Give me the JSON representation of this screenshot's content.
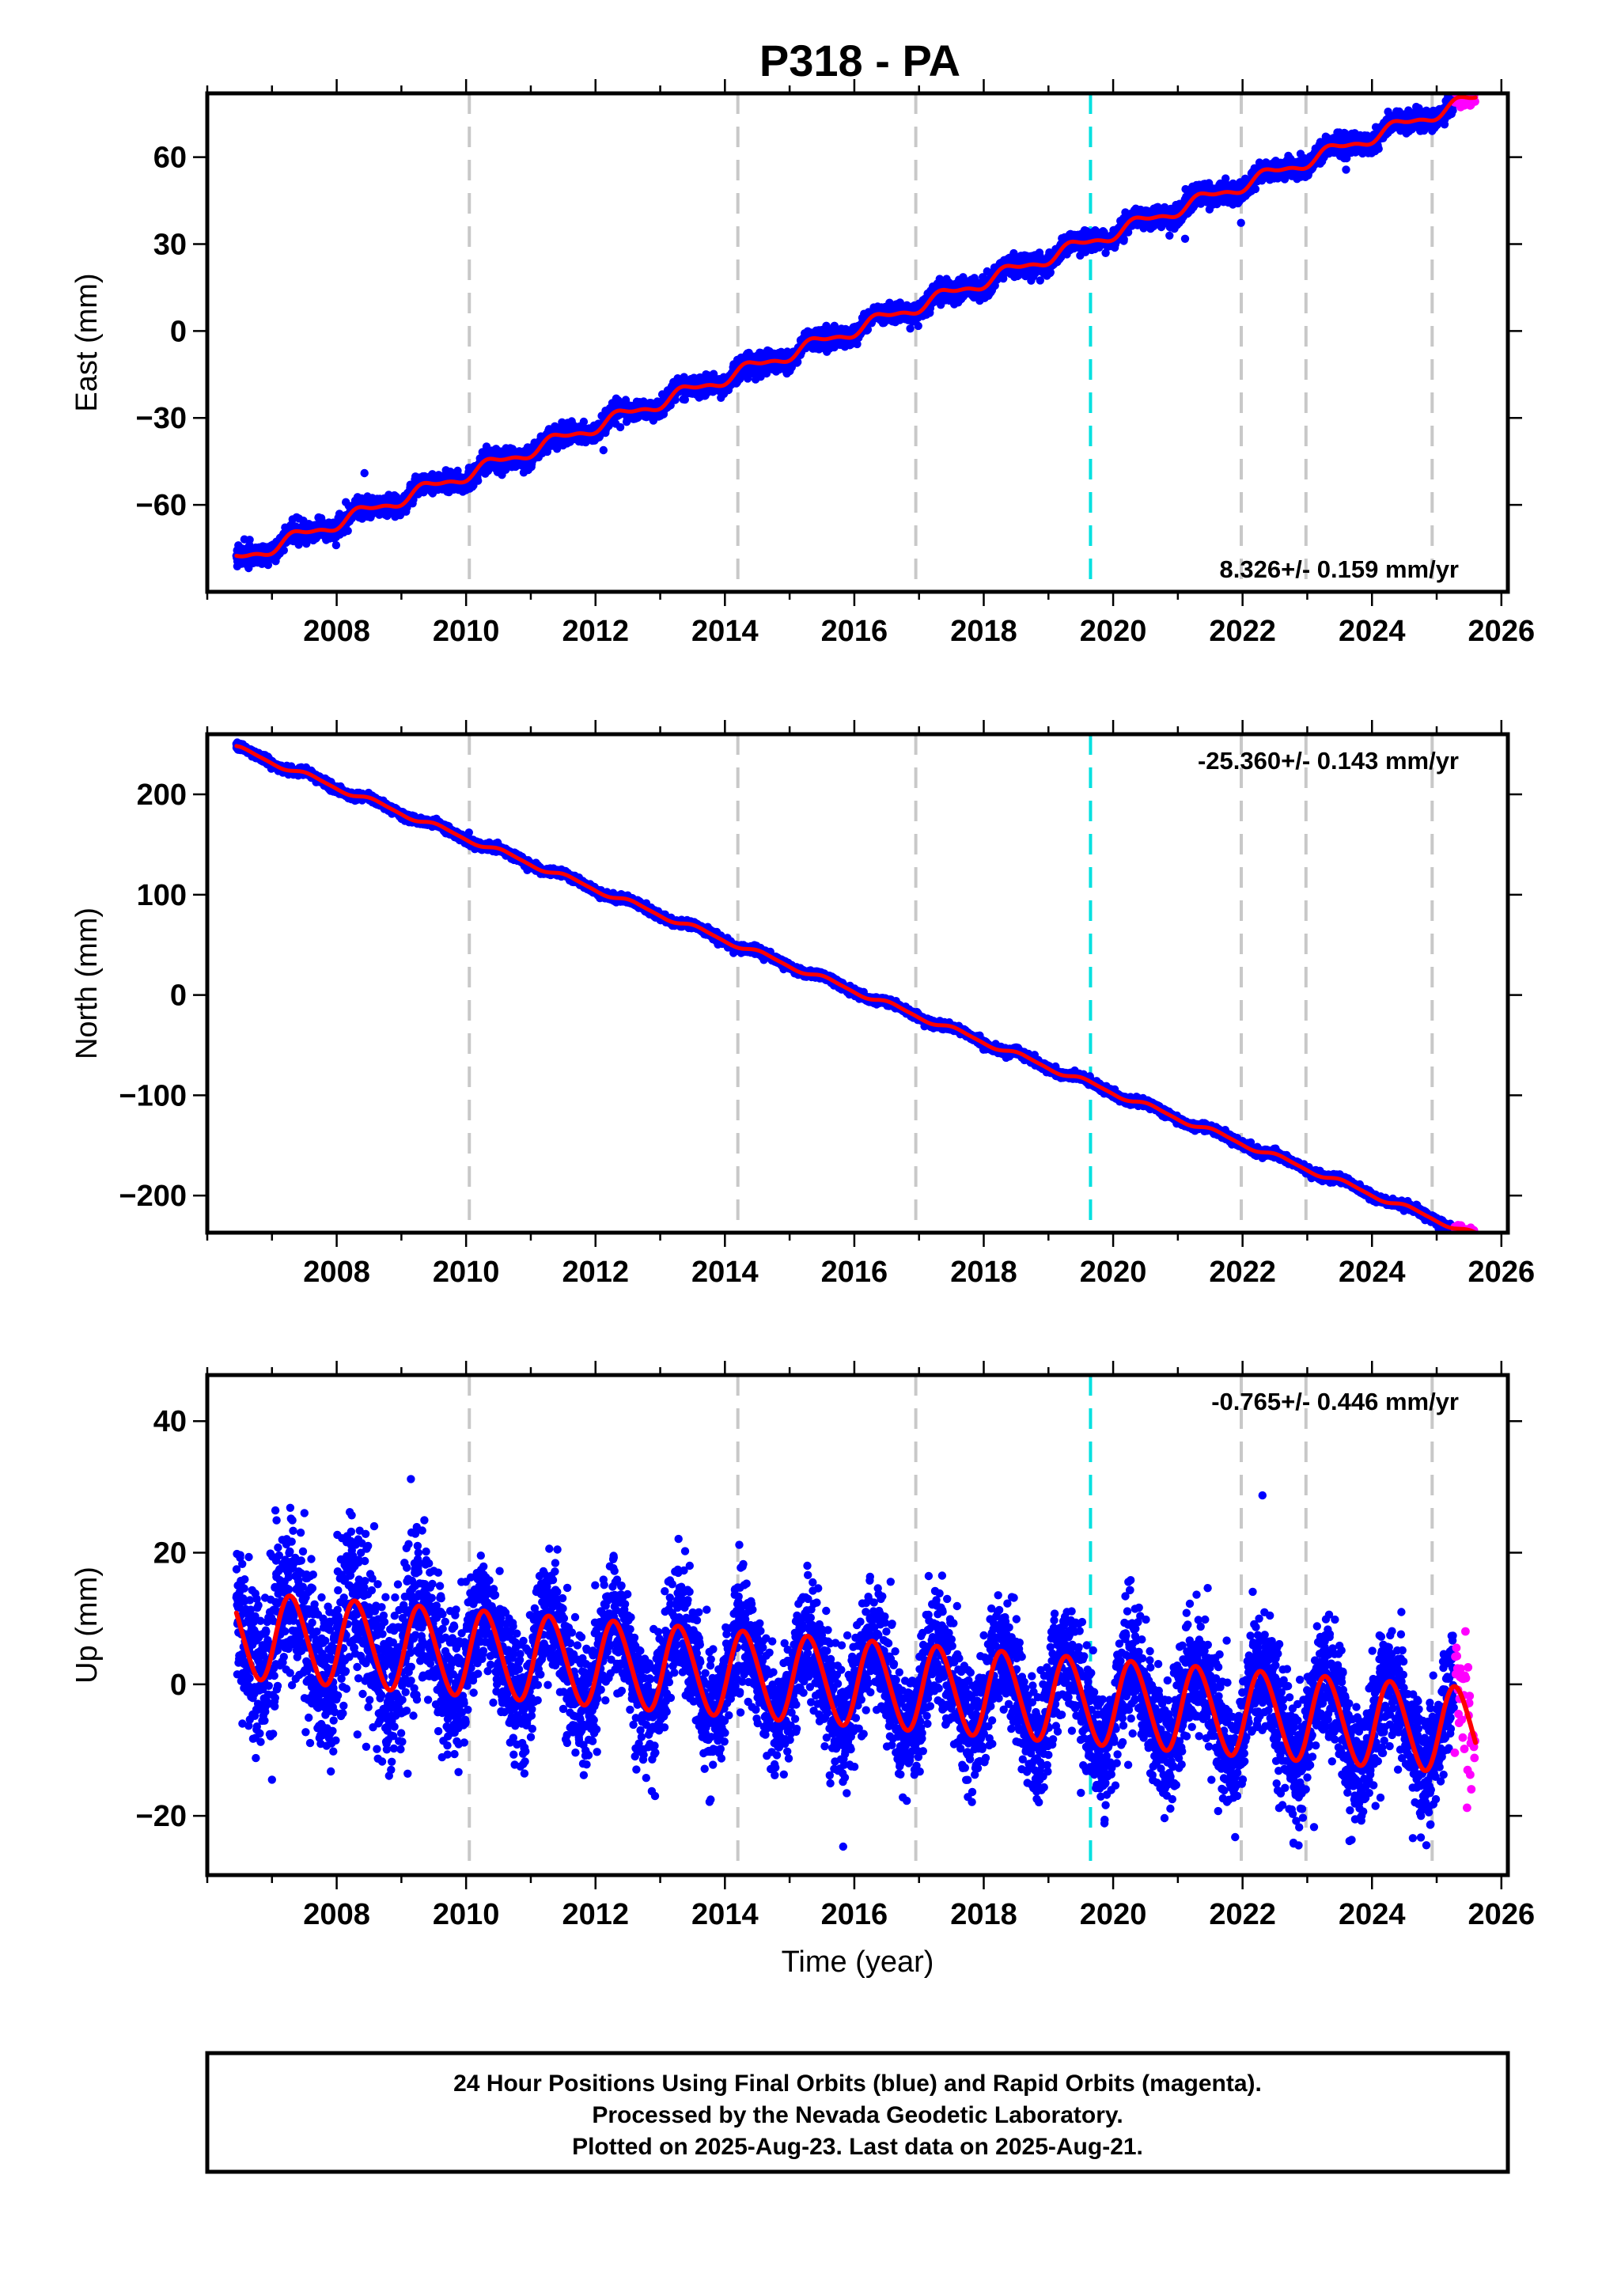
{
  "title": "P318 - PA",
  "colors": {
    "final_orbits": "#0000ff",
    "rapid_orbits": "#ff00ff",
    "fit_line": "#ff0000",
    "event_line": "#c8c8c8",
    "antenna_line": "#00e0e0"
  },
  "event_lines_years": [
    2010.05,
    2014.2,
    2016.95,
    2021.98,
    2022.98,
    2024.93
  ],
  "antenna_line_year": 2019.65,
  "chart_data": [
    {
      "type": "scatter",
      "component": "east",
      "ylabel": "East (mm)",
      "xlabel": "",
      "xlim": [
        2006.0,
        2026.1
      ],
      "ylim": [
        -90,
        82
      ],
      "xticks": [
        2008,
        2010,
        2012,
        2014,
        2016,
        2018,
        2020,
        2022,
        2024,
        2026
      ],
      "yticks": [
        -60,
        -30,
        0,
        30,
        60
      ],
      "rate_label": "8.326+/- 0.159 mm/yr",
      "rate_position": "bottom-right",
      "model": {
        "t_start": 2006.45,
        "t_end": 2025.6,
        "t_ref": 2016.0,
        "offset": 0.5,
        "rate": 8.326,
        "annual_amp": 2.0,
        "annual_phase": 0.15,
        "semiannual_amp": 0.8,
        "noise": 1.6
      },
      "series": [
        {
          "name": "Final Orbits",
          "t_range": [
            2006.45,
            2025.28
          ]
        },
        {
          "name": "Rapid Orbits",
          "t_range": [
            2025.28,
            2025.6
          ]
        }
      ]
    },
    {
      "type": "scatter",
      "component": "north",
      "ylabel": "North (mm)",
      "xlabel": "",
      "xlim": [
        2006.0,
        2026.1
      ],
      "ylim": [
        -237,
        260
      ],
      "xticks": [
        2008,
        2010,
        2012,
        2014,
        2016,
        2018,
        2020,
        2022,
        2024,
        2026
      ],
      "yticks": [
        -200,
        -100,
        0,
        100,
        200
      ],
      "rate_label": "-25.360+/- 0.143 mm/yr",
      "rate_position": "top-right",
      "model": {
        "t_start": 2006.45,
        "t_end": 2025.6,
        "t_ref": 2016.0,
        "offset": 4.0,
        "rate": -25.36,
        "annual_amp": 2.5,
        "annual_phase": 0.35,
        "semiannual_amp": 0.6,
        "noise": 1.8
      },
      "series": [
        {
          "name": "Final Orbits",
          "t_range": [
            2006.45,
            2025.28
          ]
        },
        {
          "name": "Rapid Orbits",
          "t_range": [
            2025.28,
            2025.6
          ]
        }
      ]
    },
    {
      "type": "scatter",
      "component": "up",
      "ylabel": "Up (mm)",
      "xlabel": "Time (year)",
      "xlim": [
        2006.0,
        2026.1
      ],
      "ylim": [
        -29,
        47
      ],
      "xticks": [
        2008,
        2010,
        2012,
        2014,
        2016,
        2018,
        2020,
        2022,
        2024,
        2026
      ],
      "yticks": [
        -20,
        0,
        20,
        40
      ],
      "rate_label": "-0.765+/- 0.446 mm/yr",
      "rate_position": "top-right",
      "model": {
        "t_start": 2006.45,
        "t_end": 2025.6,
        "t_ref": 2016.0,
        "offset": 0.2,
        "rate": -0.765,
        "annual_amp": 6.5,
        "annual_phase": 0.05,
        "semiannual_amp": 0.5,
        "noise": 4.5
      },
      "series": [
        {
          "name": "Final Orbits",
          "t_range": [
            2006.45,
            2025.28
          ]
        },
        {
          "name": "Rapid Orbits",
          "t_range": [
            2025.28,
            2025.6
          ]
        }
      ]
    }
  ],
  "footer": {
    "line1": "24 Hour Positions Using Final Orbits (blue) and Rapid Orbits (magenta).",
    "line2": "Processed by the Nevada Geodetic Laboratory.",
    "line3": "Plotted on 2025-Aug-23. Last data on 2025-Aug-21."
  }
}
